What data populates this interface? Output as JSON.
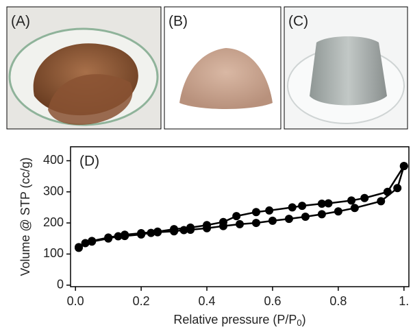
{
  "panels": [
    {
      "label": "(A)"
    },
    {
      "label": "(B)"
    },
    {
      "label": "(C)"
    }
  ],
  "chart_data": {
    "type": "line",
    "panel_label": "(D)",
    "xlabel": [
      "Relative pressure (P/P",
      "0",
      ")"
    ],
    "ylabel": "Volume @ STP (cc/g)",
    "markers": true,
    "series": [
      {
        "color": "#000000",
        "x": [
          0.01,
          0.03,
          0.05,
          0.1,
          0.13,
          0.15,
          0.2,
          0.23,
          0.25,
          0.3,
          0.33,
          0.35,
          0.4,
          0.45,
          0.5,
          0.55,
          0.6,
          0.65,
          0.7,
          0.75,
          0.8,
          0.85,
          0.93,
          0.98,
          1.0
        ],
        "values": [
          120,
          135,
          140,
          150,
          157,
          158,
          163,
          168,
          170,
          173,
          177,
          178,
          183,
          190,
          196,
          200,
          207,
          213,
          220,
          228,
          237,
          248,
          270,
          312,
          383
        ]
      },
      {
        "color": "#000000",
        "x": [
          1.0,
          0.95,
          0.88,
          0.84,
          0.77,
          0.75,
          0.69,
          0.66,
          0.59,
          0.55,
          0.49,
          0.45,
          0.4,
          0.35,
          0.3,
          0.25,
          0.2,
          0.15,
          0.1,
          0.05,
          0.01
        ],
        "values": [
          383,
          300,
          280,
          272,
          263,
          262,
          255,
          250,
          240,
          235,
          222,
          203,
          193,
          185,
          180,
          172,
          167,
          162,
          153,
          142,
          122
        ]
      }
    ],
    "xlim": [
      -0.015,
      1.015
    ],
    "ylim": [
      -5,
      445
    ],
    "xticks": [
      {
        "value": 0,
        "label": "0.0"
      },
      {
        "value": 0.2,
        "label": "0.2"
      },
      {
        "value": 0.4,
        "label": "0.4"
      },
      {
        "value": 0.6,
        "label": "0.6"
      },
      {
        "value": 0.8,
        "label": "0.8"
      },
      {
        "value": 1,
        "label": "1."
      }
    ],
    "yticks": [
      0,
      100,
      200,
      300,
      400
    ]
  }
}
